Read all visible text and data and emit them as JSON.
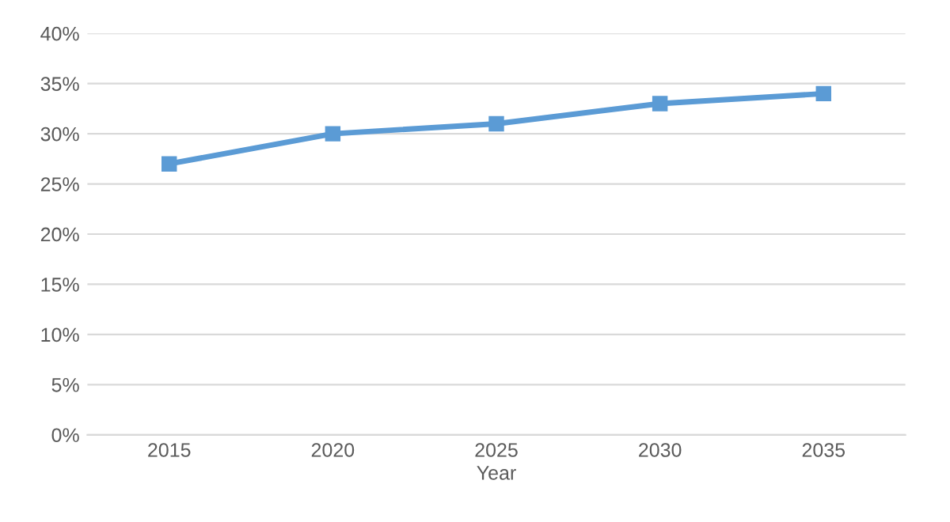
{
  "chart_data": {
    "type": "line",
    "xlabel": "Year",
    "categories": [
      "2015",
      "2020",
      "2025",
      "2030",
      "2035"
    ],
    "series": [
      {
        "color": "#5b9bd5",
        "values": [
          27,
          30,
          31,
          33,
          34
        ]
      }
    ],
    "ylim": [
      0,
      40
    ],
    "yticks": [
      {
        "value": 0,
        "label": "0%"
      },
      {
        "value": 5,
        "label": "5%"
      },
      {
        "value": 10,
        "label": "10%"
      },
      {
        "value": 15,
        "label": "15%"
      },
      {
        "value": 20,
        "label": "20%"
      },
      {
        "value": 25,
        "label": "25%"
      },
      {
        "value": 30,
        "label": "30%"
      },
      {
        "value": 35,
        "label": "35%"
      },
      {
        "value": 40,
        "label": "40%"
      }
    ],
    "grid": "y",
    "marker": "square",
    "line_style": "solid"
  }
}
